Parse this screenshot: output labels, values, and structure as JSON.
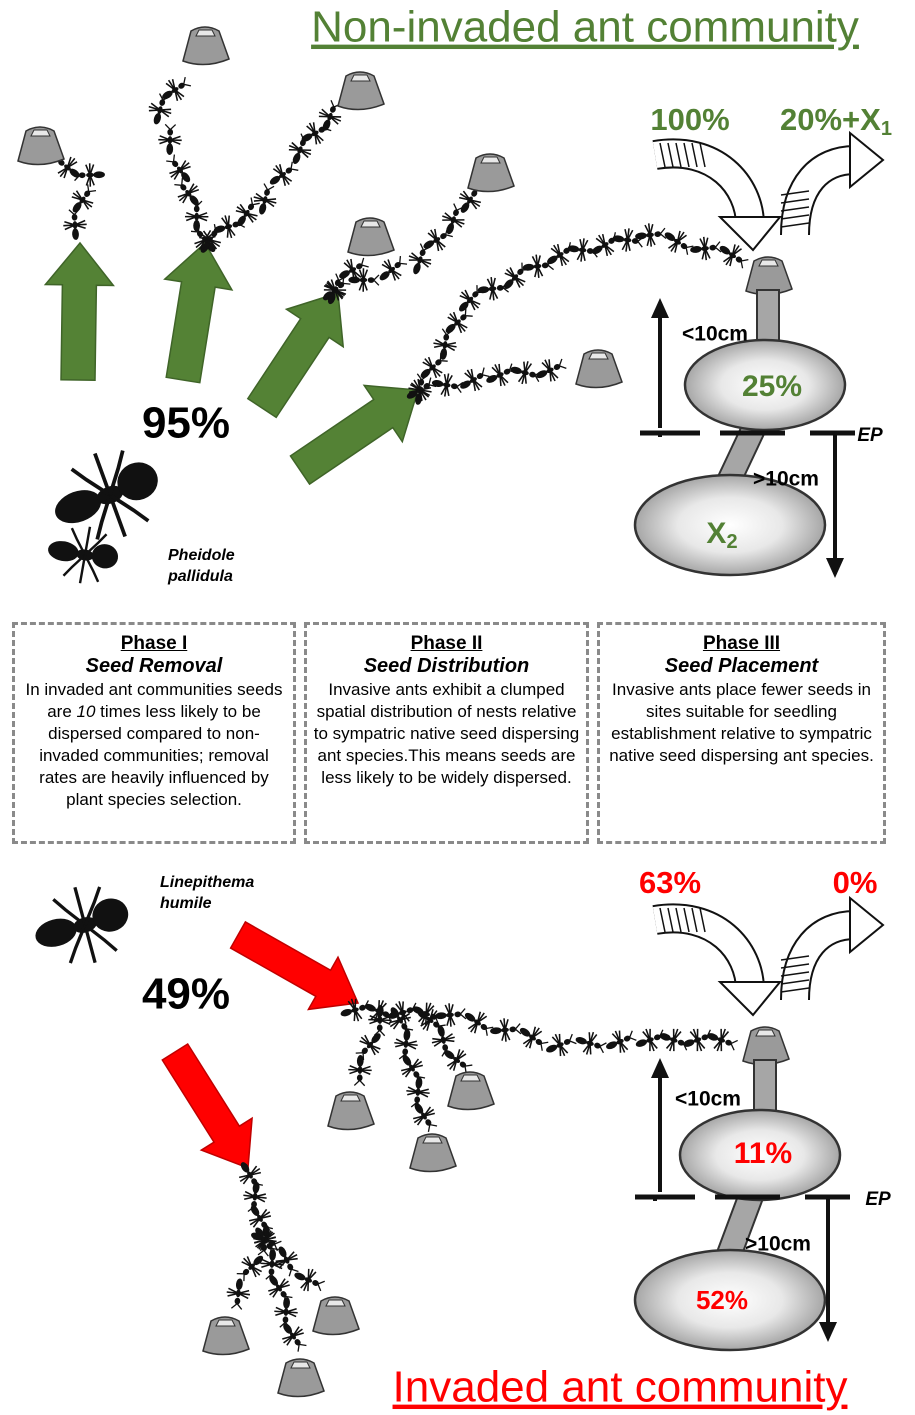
{
  "top": {
    "title": "Non-invaded ant community",
    "pct_in": "100%",
    "pct_out": "20%+X",
    "pct_out_sub": "1",
    "near_label": "<10cm",
    "near_pct": "25%",
    "ep": "EP",
    "far_label": ">10cm",
    "far_pct": "X",
    "far_pct_sub": "2",
    "removal": "95%",
    "species": [
      "Pheidole",
      "pallidula"
    ]
  },
  "phases": [
    {
      "title": "Phase I",
      "subtitle": "Seed Removal",
      "body": [
        "In invaded ant communities seeds are ",
        "10",
        " times less likely to be dispersed compared to non-invaded communities; removal rates are heavily influenced by plant species selection."
      ]
    },
    {
      "title": "Phase II",
      "subtitle": "Seed Distribution",
      "body": [
        "Invasive ants exhibit a clumped spatial distribution of nests relative to sympatric native seed dispersing ant species.This means seeds are less likely to be widely dispersed."
      ]
    },
    {
      "title": "Phase III",
      "subtitle": "Seed Placement",
      "body": [
        "Invasive ants place fewer seeds in sites suitable for seedling establishment relative to sympatric native seed dispersing ant species."
      ]
    }
  ],
  "bottom": {
    "title": "Invaded ant community",
    "pct_in": "63%",
    "pct_out": "0%",
    "near_label": "<10cm",
    "near_pct": "11%",
    "ep": "EP",
    "far_label": ">10cm",
    "far_pct": "52%",
    "removal": "49%",
    "species": [
      "Linepithema",
      "humile"
    ]
  }
}
